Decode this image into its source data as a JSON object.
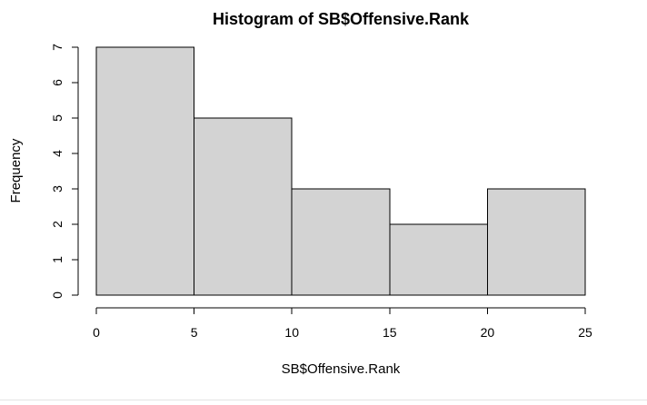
{
  "chart_data": {
    "type": "bar",
    "title": "Histogram of SB$Offensive.Rank",
    "xlabel": "SB$Offensive.Rank",
    "ylabel": "Frequency",
    "bins": [
      {
        "from": 0,
        "to": 5,
        "count": 7
      },
      {
        "from": 5,
        "to": 10,
        "count": 5
      },
      {
        "from": 10,
        "to": 15,
        "count": 3
      },
      {
        "from": 15,
        "to": 20,
        "count": 2
      },
      {
        "from": 20,
        "to": 25,
        "count": 3
      }
    ],
    "xlim": [
      0,
      25
    ],
    "ylim": [
      0,
      7
    ],
    "xticks": [
      "0",
      "5",
      "10",
      "15",
      "20",
      "25"
    ],
    "yticks": [
      "0",
      "1",
      "2",
      "3",
      "4",
      "5",
      "6",
      "7"
    ],
    "bar_fill": "#d3d3d3",
    "bar_stroke": "#000000",
    "grid": false,
    "legend": "none"
  }
}
